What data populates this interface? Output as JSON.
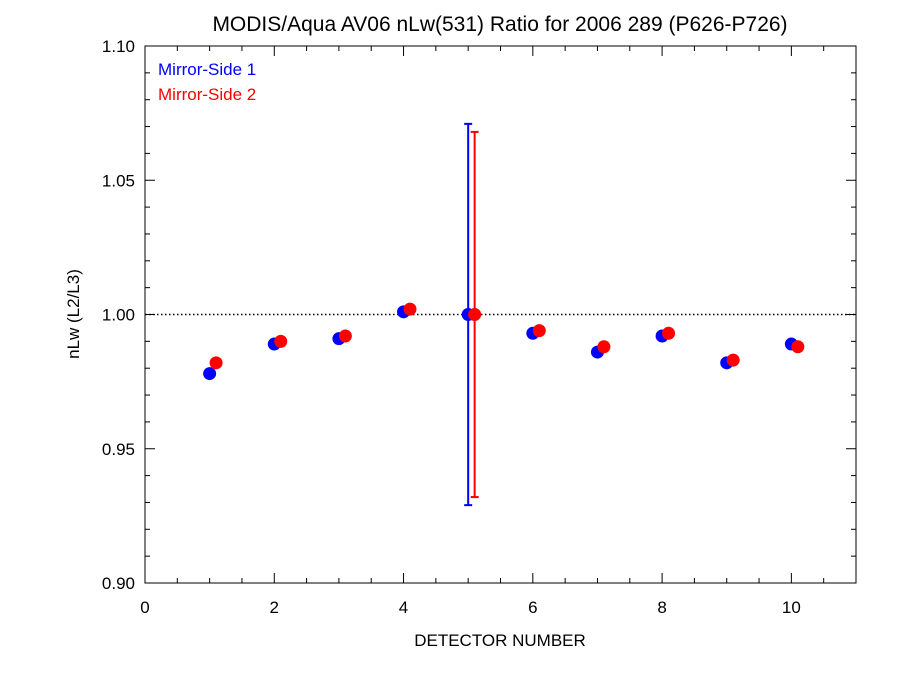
{
  "chart_data": {
    "type": "scatter",
    "title": "MODIS/Aqua AV06 nLw(531) Ratio for 2006 289 (P626-P726)",
    "xlabel": "DETECTOR NUMBER",
    "ylabel": "nLw (L2/L3)",
    "xlim": [
      0,
      11
    ],
    "ylim": [
      0.9,
      1.1
    ],
    "x_ticks": [
      "0",
      "2",
      "4",
      "6",
      "8",
      "10"
    ],
    "y_ticks": [
      "0.90",
      "0.95",
      "1.00",
      "1.05",
      "1.10"
    ],
    "reference_line": {
      "y": 1.0,
      "style": "dotted",
      "color": "#000000"
    },
    "legend_position": "top-left",
    "series": [
      {
        "name": "Mirror-Side 1",
        "color": "#0000ff",
        "x": [
          1,
          2,
          3,
          4,
          5,
          6,
          7,
          8,
          9,
          10
        ],
        "y": [
          0.978,
          0.989,
          0.991,
          1.001,
          1.0,
          0.993,
          0.986,
          0.992,
          0.982,
          0.989
        ],
        "error_bars": [
          {
            "x": 5,
            "low": 0.929,
            "high": 1.071
          }
        ]
      },
      {
        "name": "Mirror-Side 2",
        "color": "#ff0000",
        "x": [
          1.1,
          2.1,
          3.1,
          4.1,
          5.1,
          6.1,
          7.1,
          8.1,
          9.1,
          10.1
        ],
        "y": [
          0.982,
          0.99,
          0.992,
          1.002,
          1.0,
          0.994,
          0.988,
          0.993,
          0.983,
          0.988
        ],
        "error_bars": [
          {
            "x": 5.1,
            "low": 0.932,
            "high": 1.068
          }
        ]
      }
    ]
  }
}
